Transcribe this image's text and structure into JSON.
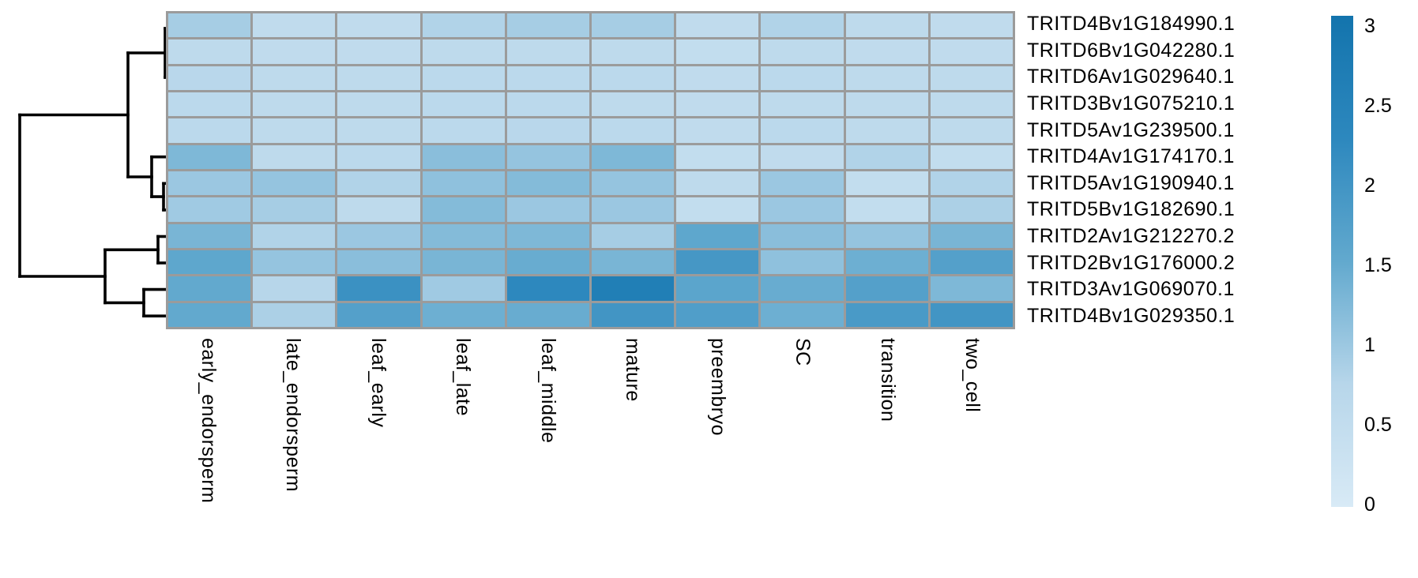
{
  "chart_data": {
    "type": "heatmap",
    "rows": [
      "TRITD4Bv1G184990.1",
      "TRITD6Bv1G042280.1",
      "TRITD6Av1G029640.1",
      "TRITD3Bv1G075210.1",
      "TRITD5Av1G239500.1",
      "TRITD4Av1G174170.1",
      "TRITD5Av1G190940.1",
      "TRITD5Bv1G182690.1",
      "TRITD2Av1G212270.2",
      "TRITD2Bv1G176000.2",
      "TRITD3Av1G069070.1",
      "TRITD4Bv1G029350.1"
    ],
    "columns": [
      "early_endorsperm",
      "late_endorsperm",
      "leaf_early",
      "leaf_late",
      "leaf_middle",
      "mature",
      "preembryo",
      "SC",
      "transition",
      "two_cell"
    ],
    "values": [
      [
        0.9,
        0.55,
        0.55,
        0.8,
        0.9,
        0.9,
        0.55,
        0.8,
        0.6,
        0.55
      ],
      [
        0.6,
        0.55,
        0.55,
        0.6,
        0.6,
        0.6,
        0.5,
        0.6,
        0.55,
        0.55
      ],
      [
        0.7,
        0.6,
        0.6,
        0.65,
        0.65,
        0.65,
        0.55,
        0.65,
        0.6,
        0.6
      ],
      [
        0.65,
        0.6,
        0.6,
        0.65,
        0.65,
        0.6,
        0.55,
        0.6,
        0.6,
        0.6
      ],
      [
        0.65,
        0.6,
        0.6,
        0.65,
        0.7,
        0.65,
        0.55,
        0.65,
        0.6,
        0.6
      ],
      [
        1.25,
        0.6,
        0.65,
        1.15,
        1.05,
        1.25,
        0.5,
        0.55,
        0.8,
        0.5
      ],
      [
        1.0,
        1.05,
        0.8,
        1.1,
        1.2,
        1.05,
        0.6,
        1.0,
        0.5,
        0.8
      ],
      [
        0.95,
        0.9,
        0.6,
        1.2,
        1.0,
        1.0,
        0.5,
        1.0,
        0.5,
        0.85
      ],
      [
        1.3,
        0.8,
        1.0,
        1.2,
        1.25,
        0.9,
        1.55,
        1.15,
        1.05,
        1.3
      ],
      [
        1.55,
        1.05,
        1.15,
        1.3,
        1.45,
        1.3,
        1.9,
        1.1,
        1.4,
        1.7
      ],
      [
        1.5,
        0.75,
        2.05,
        0.95,
        2.25,
        2.6,
        1.6,
        1.45,
        1.7,
        1.25
      ],
      [
        1.5,
        0.85,
        1.7,
        1.4,
        1.45,
        1.95,
        1.75,
        1.4,
        1.85,
        1.95
      ]
    ],
    "value_range": [
      0,
      3
    ],
    "colormap_stops": [
      [
        0.0,
        "#d8eaf6"
      ],
      [
        0.75,
        "#b7d6ea"
      ],
      [
        1.5,
        "#62a9ce"
      ],
      [
        2.25,
        "#2d88be"
      ],
      [
        3.0,
        "#1374ad"
      ]
    ],
    "colorbar": {
      "tick_labels": [
        "3",
        "2.5",
        "2",
        "1.5",
        "1",
        "0.5",
        "0"
      ],
      "tick_values": [
        3,
        2.5,
        2,
        1.5,
        1,
        0.5,
        0
      ],
      "position": "right"
    },
    "grid_line_color": "#9b9b9b",
    "row_dendrogram": {
      "side": "left",
      "color": "#000000",
      "segments": [
        [
          25,
          145.5,
          162,
          145.5
        ],
        [
          25,
          145.5,
          25,
          350
        ],
        [
          25,
          350,
          133,
          350
        ],
        [
          162,
          67,
          162,
          224
        ],
        [
          162,
          67,
          209,
          67
        ],
        [
          209,
          36,
          209,
          98
        ],
        [
          209,
          36,
          212,
          36
        ],
        [
          209,
          98,
          212,
          98
        ],
        [
          162,
          224,
          192,
          224
        ],
        [
          192,
          198.7,
          192,
          249.1
        ],
        [
          192,
          198.7,
          212,
          198.7
        ],
        [
          192,
          249.1,
          207,
          249.1
        ],
        [
          207,
          232.3,
          207,
          265.9
        ],
        [
          207,
          232.3,
          212,
          232.3
        ],
        [
          207,
          265.9,
          212,
          265.9
        ],
        [
          133,
          316.3,
          133,
          383.4
        ],
        [
          133,
          316.3,
          200,
          316.3
        ],
        [
          200,
          299.5,
          200,
          333
        ],
        [
          200,
          299.5,
          212,
          299.5
        ],
        [
          200,
          333,
          212,
          333
        ],
        [
          133,
          383.4,
          182,
          383.4
        ],
        [
          182,
          366.6,
          182,
          400.2
        ],
        [
          182,
          366.6,
          212,
          366.6
        ],
        [
          182,
          400.2,
          212,
          400.2
        ]
      ]
    }
  }
}
